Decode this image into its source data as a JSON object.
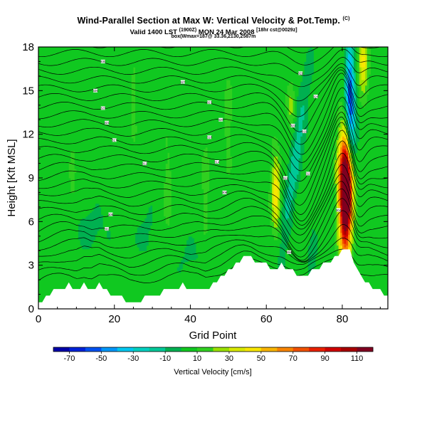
{
  "header": {
    "title": "Wind-Parallel Section at Max W: Vertical Velocity & Pot.Temp.",
    "title_mark": "(C)",
    "valid_prefix": "Valid 1400 LST",
    "valid_utc": "(1900Z)",
    "valid_date": "MON 24 Mar 2008",
    "valid_forecast": "[18hr cst@0029z]",
    "box_info": "box(Wmax=187@ 33.36,2130,2587m"
  },
  "chart_data": {
    "type": "heatmap",
    "title": "Wind-Parallel Section at Max W: Vertical Velocity & Pot.Temp.",
    "xlabel": "Grid Point",
    "ylabel": "Height [Kft MSL]",
    "xlim": [
      0,
      92
    ],
    "ylim": [
      0,
      18
    ],
    "xticks": [
      0,
      20,
      40,
      60,
      80
    ],
    "xtick_labels": [
      "0",
      "20",
      "40",
      "60",
      "80"
    ],
    "yticks": [
      0,
      3,
      6,
      9,
      12,
      15,
      18
    ],
    "ytick_labels": [
      "0",
      "3",
      "6",
      "9",
      "12",
      "15",
      "18"
    ],
    "background_w": 5,
    "terrain": [
      [
        0,
        0.3
      ],
      [
        2,
        0.8
      ],
      [
        4,
        1.2
      ],
      [
        6,
        1.5
      ],
      [
        8,
        1.6
      ],
      [
        10,
        1.4
      ],
      [
        12,
        1.7
      ],
      [
        14,
        1.3
      ],
      [
        16,
        1.6
      ],
      [
        18,
        1.2
      ],
      [
        20,
        1.0
      ],
      [
        22,
        0.8
      ],
      [
        24,
        0.5
      ],
      [
        26,
        0.6
      ],
      [
        28,
        0.7
      ],
      [
        30,
        0.9
      ],
      [
        32,
        1.1
      ],
      [
        34,
        1.4
      ],
      [
        36,
        1.5
      ],
      [
        38,
        1.6
      ],
      [
        40,
        1.4
      ],
      [
        42,
        1.5
      ],
      [
        44,
        1.3
      ],
      [
        46,
        1.8
      ],
      [
        48,
        2.1
      ],
      [
        50,
        2.6
      ],
      [
        52,
        3.2
      ],
      [
        54,
        3.6
      ],
      [
        56,
        3.6
      ],
      [
        58,
        3.2
      ],
      [
        60,
        3.0
      ],
      [
        62,
        2.9
      ],
      [
        64,
        3.0
      ],
      [
        66,
        2.6
      ],
      [
        68,
        2.4
      ],
      [
        70,
        2.3
      ],
      [
        72,
        2.6
      ],
      [
        74,
        2.8
      ],
      [
        76,
        3.2
      ],
      [
        78,
        3.6
      ],
      [
        80,
        3.9
      ],
      [
        82,
        3.9
      ],
      [
        84,
        2.6
      ],
      [
        86,
        2.0
      ],
      [
        88,
        1.4
      ],
      [
        90,
        1.2
      ],
      [
        92,
        1.0
      ]
    ],
    "w_features": [
      {
        "name": "updraft-main",
        "x": 80.8,
        "y": 7.2,
        "sx": 1.1,
        "sy": 2.6,
        "tilt": 0,
        "amp": 125
      },
      {
        "name": "updraft-core-upper",
        "x": 81.0,
        "y": 9.5,
        "sx": 1.4,
        "sy": 2.0,
        "tilt": -0.1,
        "amp": 60
      },
      {
        "name": "updraft-cap",
        "x": 85.5,
        "y": 17.0,
        "sx": 0.9,
        "sy": 1.4,
        "tilt": 0,
        "amp": 40
      },
      {
        "name": "updraft-left",
        "x": 62.5,
        "y": 8.0,
        "sx": 0.8,
        "sy": 1.8,
        "tilt": 0,
        "amp": 42
      },
      {
        "name": "updraft-left-upper",
        "x": 66.5,
        "y": 14.0,
        "sx": 0.7,
        "sy": 1.0,
        "tilt": 0,
        "amp": 20
      },
      {
        "name": "downdraft-top",
        "x": 82.0,
        "y": 15.5,
        "sx": 0.8,
        "sy": 2.5,
        "tilt": 0,
        "amp": -52
      },
      {
        "name": "downdraft-mid",
        "x": 82.4,
        "y": 12.0,
        "sx": 1.0,
        "sy": 2.0,
        "tilt": 0,
        "amp": -35
      },
      {
        "name": "downdraft-slanted",
        "x": 67.5,
        "y": 10.0,
        "sx": 1.1,
        "sy": 4.5,
        "tilt": 0.55,
        "amp": -22
      },
      {
        "name": "updraft-faint-34",
        "x": 34.0,
        "y": 8.0,
        "sx": 0.8,
        "sy": 2.5,
        "tilt": 0,
        "amp": 10
      },
      {
        "name": "updraft-faint-44",
        "x": 44.0,
        "y": 8.5,
        "sx": 0.7,
        "sy": 2.5,
        "tilt": 0,
        "amp": 10
      },
      {
        "name": "updraft-faint-50",
        "x": 50.0,
        "y": 13.0,
        "sx": 0.8,
        "sy": 2.5,
        "tilt": 0,
        "amp": 10
      },
      {
        "name": "updraft-faint-25",
        "x": 25.0,
        "y": 14.0,
        "sx": 0.6,
        "sy": 2.0,
        "tilt": 0,
        "amp": 9
      },
      {
        "name": "updraft-faint-9",
        "x": 9.0,
        "y": 9.0,
        "sx": 0.6,
        "sy": 2.0,
        "tilt": 0,
        "amp": 8
      },
      {
        "name": "downdraft-lowleft",
        "x": 14.0,
        "y": 5.5,
        "sx": 3.5,
        "sy": 1.2,
        "tilt": 0,
        "amp": -8
      },
      {
        "name": "downdraft-low-29",
        "x": 29.0,
        "y": 5.0,
        "sx": 2.5,
        "sy": 1.5,
        "tilt": 0,
        "amp": -7
      },
      {
        "name": "downdraft-low-72",
        "x": 72.0,
        "y": 4.5,
        "sx": 1.5,
        "sy": 1.5,
        "tilt": 0,
        "amp": -8
      },
      {
        "name": "downdraft-low-40",
        "x": 40.0,
        "y": 3.5,
        "sx": 3.0,
        "sy": 1.2,
        "tilt": 0,
        "amp": -6
      }
    ],
    "colorbar": {
      "title": "Vertical Velocity [cm/s]",
      "min": -80,
      "max": 120,
      "step": 10,
      "ticks": [
        -70,
        -50,
        -30,
        -10,
        10,
        30,
        50,
        70,
        90,
        110
      ],
      "tick_labels": [
        "-70",
        "-50",
        "-30",
        "-10",
        "10",
        "30",
        "50",
        "70",
        "90",
        "110"
      ],
      "colors": [
        "#0000a8",
        "#0022d8",
        "#0050f0",
        "#0096f8",
        "#00c8f0",
        "#00d0c0",
        "#00c898",
        "#00b050",
        "#10c820",
        "#30d020",
        "#9ae000",
        "#d8e800",
        "#f8e600",
        "#f8b400",
        "#f88400",
        "#f05000",
        "#e82000",
        "#d00000",
        "#a80000",
        "#800020"
      ]
    },
    "theta_contours": {
      "unit": "K",
      "labels": [
        {
          "text": "330",
          "x": 17,
          "y": 17.0
        },
        {
          "text": "326",
          "x": 15,
          "y": 15.0
        },
        {
          "text": "323",
          "x": 17,
          "y": 13.8
        },
        {
          "text": "321",
          "x": 18,
          "y": 12.8
        },
        {
          "text": "317",
          "x": 20,
          "y": 11.6
        },
        {
          "text": "312",
          "x": 28,
          "y": 10.0
        },
        {
          "text": "305",
          "x": 19,
          "y": 6.5
        },
        {
          "text": "302",
          "x": 18,
          "y": 5.5
        },
        {
          "text": "327",
          "x": 38,
          "y": 15.6
        },
        {
          "text": "323",
          "x": 45,
          "y": 14.2
        },
        {
          "text": "320",
          "x": 48,
          "y": 13.0
        },
        {
          "text": "318",
          "x": 45,
          "y": 11.8
        },
        {
          "text": "314",
          "x": 47,
          "y": 10.1
        },
        {
          "text": "308",
          "x": 49,
          "y": 8.0
        },
        {
          "text": "329",
          "x": 69,
          "y": 16.2
        },
        {
          "text": "324",
          "x": 73,
          "y": 14.6
        },
        {
          "text": "321",
          "x": 67,
          "y": 12.6
        },
        {
          "text": "319",
          "x": 70,
          "y": 12.2
        },
        {
          "text": "313",
          "x": 65,
          "y": 9.0
        },
        {
          "text": "311",
          "x": 71,
          "y": 9.3
        },
        {
          "text": "304",
          "x": 79,
          "y": 6.8
        },
        {
          "text": "298",
          "x": 66,
          "y": 3.9
        }
      ]
    }
  }
}
